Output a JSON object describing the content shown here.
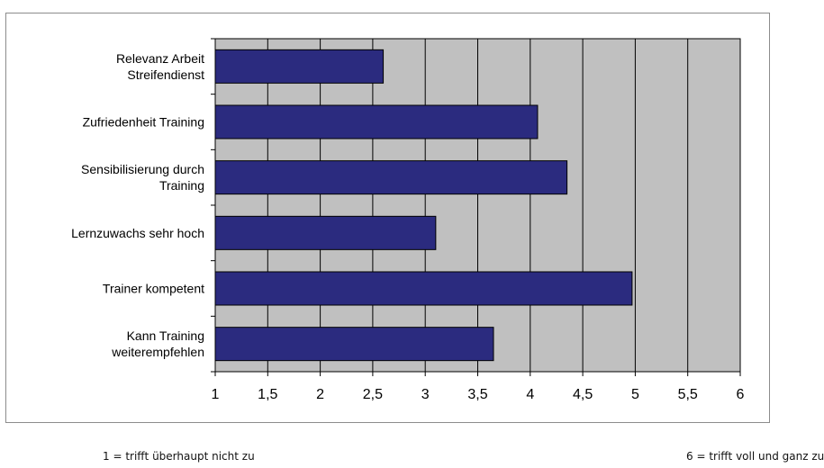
{
  "chart_data": {
    "type": "bar",
    "orientation": "horizontal",
    "categories": [
      [
        "Relevanz Arbeit",
        "Streifendienst"
      ],
      [
        "Zufriedenheit Training"
      ],
      [
        "Sensibilisierung durch",
        "Training"
      ],
      [
        "Lernzuwachs sehr hoch"
      ],
      [
        "Trainer kompetent"
      ],
      [
        "Kann Training",
        "weiterempfehlen"
      ]
    ],
    "values": [
      2.6,
      4.07,
      4.35,
      3.1,
      4.97,
      3.65
    ],
    "xlim": [
      1,
      6
    ],
    "xticks": [
      1,
      1.5,
      2,
      2.5,
      3,
      3.5,
      4,
      4.5,
      5,
      5.5,
      6
    ],
    "xtick_labels": [
      "1",
      "1,5",
      "2",
      "2,5",
      "3",
      "3,5",
      "4",
      "4,5",
      "5",
      "5,5",
      "6"
    ],
    "grid": "vertical",
    "bar_color": "#2b2b7f",
    "plot_background": "#c0c0c0",
    "title": "",
    "xlabel": "",
    "ylabel": ""
  },
  "scale_notes": {
    "left": "1 = trifft überhaupt nicht zu",
    "right": "6 = trifft voll und ganz zu"
  }
}
